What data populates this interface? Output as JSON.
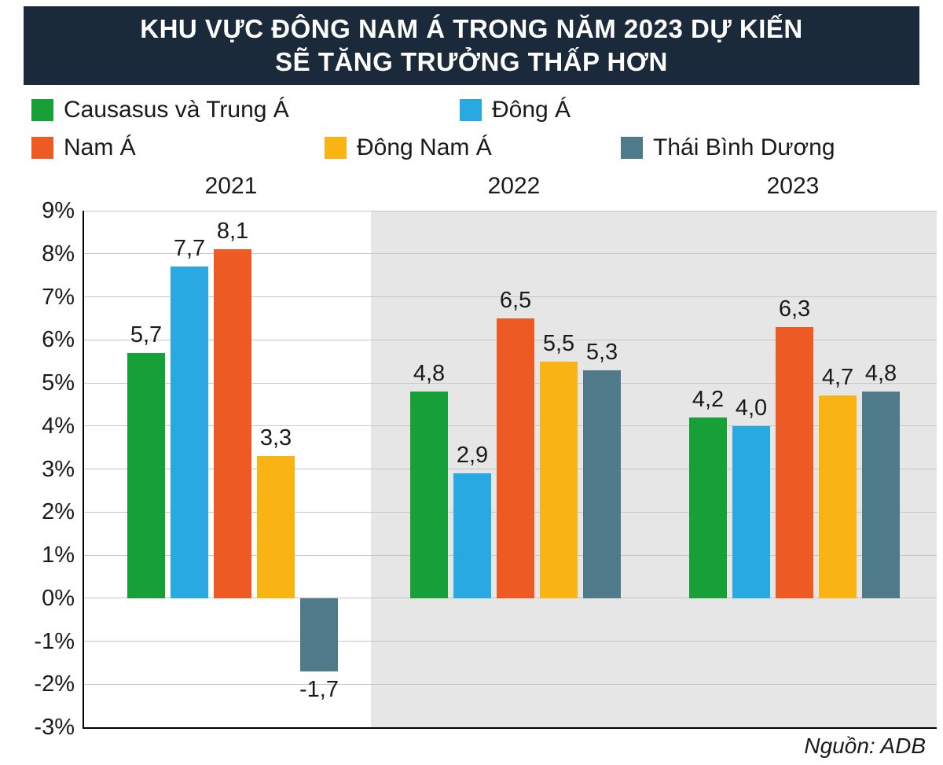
{
  "title": {
    "line1": "KHU VỰC ĐÔNG NAM Á TRONG NĂM 2023 DỰ KIẾN",
    "line2": "SẼ TĂNG TRƯỞNG THẤP HƠN"
  },
  "title_bg_color": "#1b2a3a",
  "source": "Nguồn: ADB",
  "years": [
    "2021",
    "2022",
    "2023"
  ],
  "chart_data": {
    "type": "bar",
    "title": "Khu vực Đông Nam Á trong năm 2023 dự kiến sẽ tăng trưởng thấp hơn",
    "categories": [
      "2021",
      "2022",
      "2023"
    ],
    "series": [
      {
        "name": "Causasus và Trung Á",
        "color": "#18a038",
        "values": [
          5.7,
          4.8,
          4.2
        ]
      },
      {
        "name": "Đông Á",
        "color": "#29a9e1",
        "values": [
          7.7,
          2.9,
          4.0
        ]
      },
      {
        "name": "Nam Á",
        "color": "#ee5a24",
        "values": [
          8.1,
          6.5,
          6.3
        ]
      },
      {
        "name": "Đông Nam Á",
        "color": "#f9b414",
        "values": [
          3.3,
          5.5,
          4.7
        ]
      },
      {
        "name": "Thái Bình Dương",
        "color": "#4e7a8a",
        "values": [
          -1.7,
          5.3,
          4.8
        ]
      }
    ],
    "value_labels": [
      [
        "5,7",
        "4,8",
        "4,2"
      ],
      [
        "7,7",
        "2,9",
        "4,0"
      ],
      [
        "8,1",
        "6,5",
        "6,3"
      ],
      [
        "3,3",
        "5,5",
        "4,7"
      ],
      [
        "-1,7",
        "5,3",
        "4,8"
      ]
    ],
    "y_ticks": [
      "9%",
      "8%",
      "7%",
      "6%",
      "5%",
      "4%",
      "3%",
      "2%",
      "1%",
      "0%",
      "-1%",
      "-2%",
      "-3%"
    ],
    "ylim": [
      -3,
      9
    ],
    "grid": true,
    "legend_position": "top",
    "highlighted_categories": [
      "2022",
      "2023"
    ],
    "highlight_color": "#e6e6e6",
    "source": "Nguồn: ADB"
  }
}
